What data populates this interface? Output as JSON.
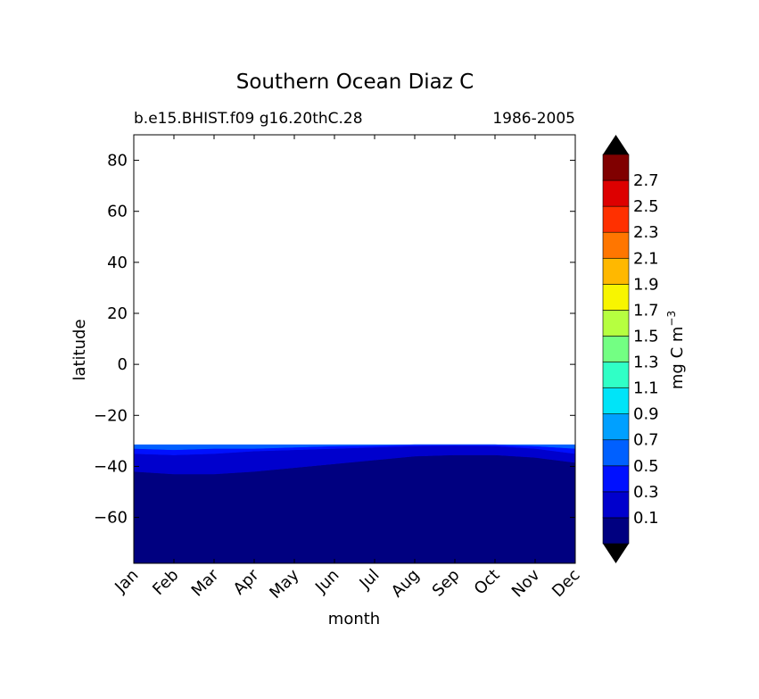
{
  "chart_data": {
    "type": "heatmap",
    "title": "Southern Ocean Diaz C",
    "subtitle_left": "b.e15.BHIST.f09 g16.20thC.28",
    "subtitle_right": "1986-2005",
    "xlabel": "month",
    "ylabel": "latitude",
    "categories": [
      "Jan",
      "Feb",
      "Mar",
      "Apr",
      "May",
      "Jun",
      "Jul",
      "Aug",
      "Sep",
      "Oct",
      "Nov",
      "Dec"
    ],
    "ylim": [
      -78,
      90
    ],
    "yticks": [
      -60,
      -40,
      -20,
      0,
      20,
      40,
      60,
      80
    ],
    "data_lat_max": -31.5,
    "boundaries": {
      "lat_0_1": [
        -42.0,
        -43.0,
        -43.0,
        -42.0,
        -40.5,
        -39.0,
        -37.5,
        -36.0,
        -35.5,
        -35.5,
        -36.5,
        -38.5
      ],
      "lat_0_3": [
        -35.0,
        -35.5,
        -35.0,
        -34.0,
        -33.5,
        -33.0,
        -32.5,
        -32.0,
        -31.8,
        -32.0,
        -33.0,
        -35.0
      ],
      "lat_0_5": [
        -33.0,
        -33.5,
        -33.0,
        -33.0,
        -32.5,
        -32.0,
        -31.8,
        -31.5,
        -31.5,
        -31.5,
        -32.0,
        -33.0
      ]
    },
    "colorbar": {
      "label": "mg C m",
      "label_exponent": "−3",
      "ticks": [
        "0.1",
        "0.3",
        "0.5",
        "0.7",
        "0.9",
        "1.1",
        "1.3",
        "1.5",
        "1.7",
        "1.9",
        "2.1",
        "2.3",
        "2.5",
        "2.7"
      ],
      "colors": [
        "#000080",
        "#0000cd",
        "#0010ff",
        "#0060ff",
        "#00a0ff",
        "#00e4f8",
        "#30ffc6",
        "#73ff83",
        "#b6ff40",
        "#f8f500",
        "#ffb800",
        "#ff7600",
        "#ff3000",
        "#dd0000",
        "#800000"
      ],
      "extend_min_color": "#000000",
      "extend_max_color": "#000000"
    }
  }
}
